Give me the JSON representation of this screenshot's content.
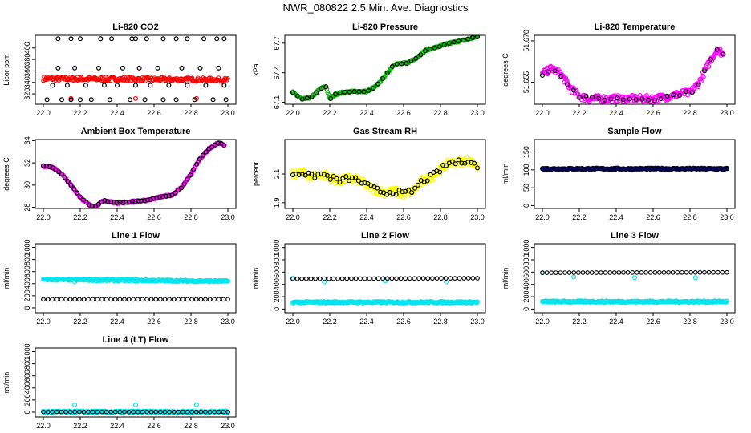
{
  "main_title": "NWR_080822  2.5 Min. Ave. Diagnostics",
  "chart_data": [
    {
      "id": "co2",
      "type": "scatter",
      "title": "Li-820 CO2",
      "ylabel": "Licor ppm",
      "xlim": [
        22.0,
        23.0
      ],
      "ylim": [
        302,
        422
      ],
      "xticks": [
        "22.0",
        "22.2",
        "22.4",
        "22.6",
        "22.8",
        "23.0"
      ],
      "yticks": [
        {
          "v": 320,
          "label": "320"
        },
        {
          "v": 340,
          "label": "340"
        },
        {
          "v": 360,
          "label": "360"
        },
        {
          "v": 380,
          "label": "380"
        },
        {
          "v": 400,
          "label": "400"
        }
      ],
      "series": [
        {
          "name": "band",
          "color": "#ff0000",
          "kind": "band",
          "y0": 343,
          "y1": 350,
          "slope": -2
        },
        {
          "name": "red-outliers",
          "color": "#ff0000",
          "kind": "points",
          "x": [
            22.15,
            22.5,
            22.83
          ],
          "y": [
            312,
            312,
            312
          ]
        },
        {
          "name": "black",
          "color": "#000000",
          "kind": "points",
          "x": [
            22.02,
            22.05,
            22.08,
            22.1,
            22.13,
            22.15,
            22.17,
            22.2,
            22.23,
            22.26,
            22.3,
            22.33,
            22.36,
            22.4,
            22.43,
            22.47,
            22.5,
            22.52,
            22.55,
            22.58,
            22.62,
            22.65,
            22.68,
            22.72,
            22.75,
            22.78,
            22.82,
            22.85,
            22.88,
            22.92,
            22.95,
            22.98,
            22.99
          ],
          "y": [
            310,
            335,
            365,
            310,
            335,
            310,
            365,
            310,
            335,
            310,
            365,
            335,
            310,
            335,
            365,
            310,
            335,
            365,
            310,
            335,
            365,
            310,
            335,
            310,
            365,
            335,
            310,
            365,
            335,
            310,
            365,
            335,
            310
          ]
        },
        {
          "name": "black-top",
          "color": "#000000",
          "kind": "points",
          "x": [
            22.08,
            22.15,
            22.2,
            22.31,
            22.37,
            22.48,
            22.5,
            22.56,
            22.65,
            22.72,
            22.78,
            22.87,
            22.94,
            22.98
          ],
          "y": [
            416,
            416,
            416,
            416,
            416,
            416,
            416,
            416,
            416,
            416,
            416,
            416,
            416,
            416
          ]
        }
      ]
    },
    {
      "id": "pressure",
      "type": "scatter",
      "title": "Li-820 Pressure",
      "ylabel": "kPa",
      "xlim": [
        22.0,
        23.0
      ],
      "ylim": [
        67.08,
        67.78
      ],
      "xticks": [
        "22.0",
        "22.2",
        "22.4",
        "22.6",
        "22.8",
        "23.0"
      ],
      "yticks": [
        {
          "v": 67.1,
          "label": "67.1"
        },
        {
          "v": 67.4,
          "label": "67.4"
        },
        {
          "v": 67.7,
          "label": "67.7"
        }
      ],
      "series": [
        {
          "name": "green",
          "color": "#00c000",
          "kind": "curve",
          "x": [
            22.0,
            22.05,
            22.1,
            22.15,
            22.18,
            22.2,
            22.23,
            22.27,
            22.33,
            22.4,
            22.45,
            22.5,
            22.55,
            22.58,
            22.62,
            22.67,
            22.72,
            22.78,
            22.85,
            22.9,
            22.95,
            23.0
          ],
          "y": [
            67.2,
            67.13,
            67.15,
            67.24,
            67.26,
            67.13,
            67.18,
            67.2,
            67.21,
            67.21,
            67.26,
            67.37,
            67.49,
            67.49,
            67.5,
            67.55,
            67.63,
            67.66,
            67.7,
            67.72,
            67.74,
            67.77
          ]
        },
        {
          "name": "black",
          "color": "#000000",
          "kind": "curvepoints",
          "every": 3
        }
      ]
    },
    {
      "id": "temp",
      "type": "scatter",
      "title": "Li-820 Temperature",
      "ylabel": "degrees C",
      "xlim": [
        22.0,
        23.0
      ],
      "ylim": [
        51.647,
        51.672
      ],
      "xticks": [
        "22.0",
        "22.2",
        "22.4",
        "22.6",
        "22.8",
        "23.0"
      ],
      "yticks": [
        {
          "v": 51.655,
          "label": "51.655"
        },
        {
          "v": 51.67,
          "label": "51.670"
        }
      ],
      "series": [
        {
          "name": "magenta",
          "color": "#ff00ff",
          "kind": "curve",
          "x": [
            22.0,
            22.05,
            22.1,
            22.15,
            22.2,
            22.25,
            22.3,
            22.35,
            22.4,
            22.5,
            22.6,
            22.7,
            22.75,
            22.8,
            22.85,
            22.88,
            22.92,
            22.95,
            22.98
          ],
          "y": [
            51.658,
            51.66,
            51.658,
            51.653,
            51.65,
            51.649,
            51.649,
            51.649,
            51.649,
            51.649,
            51.649,
            51.65,
            51.651,
            51.651,
            51.655,
            51.659,
            51.664,
            51.667,
            51.665
          ]
        },
        {
          "name": "black",
          "color": "#000000",
          "kind": "curvepoints",
          "every": 4
        }
      ]
    },
    {
      "id": "ambient",
      "type": "scatter",
      "title": "Ambient Box Temperature",
      "ylabel": "degrees C",
      "xlim": [
        22.0,
        23.0
      ],
      "ylim": [
        27.9,
        34.1
      ],
      "xticks": [
        "22.0",
        "22.2",
        "22.4",
        "22.6",
        "22.8",
        "23.0"
      ],
      "yticks": [
        {
          "v": 28,
          "label": "28"
        },
        {
          "v": 30,
          "label": "30"
        },
        {
          "v": 32,
          "label": "32"
        },
        {
          "v": 34,
          "label": "34"
        }
      ],
      "series": [
        {
          "name": "magenta",
          "color": "#ff00ff",
          "kind": "curve",
          "x": [
            22.0,
            22.03,
            22.06,
            22.1,
            22.15,
            22.2,
            22.25,
            22.28,
            22.3,
            22.33,
            22.36,
            22.4,
            22.45,
            22.5,
            22.55,
            22.6,
            22.65,
            22.7,
            22.75,
            22.8,
            22.85,
            22.9,
            22.95,
            22.98
          ],
          "y": [
            31.7,
            31.7,
            31.5,
            31.0,
            30.0,
            28.9,
            28.2,
            28.05,
            28.3,
            28.6,
            28.5,
            28.4,
            28.45,
            28.55,
            28.6,
            28.8,
            29.0,
            29.1,
            29.8,
            31.0,
            32.4,
            33.3,
            33.8,
            33.6
          ]
        },
        {
          "name": "black",
          "color": "#000000",
          "kind": "curvepoints",
          "every": 2
        }
      ]
    },
    {
      "id": "rh",
      "type": "scatter",
      "title": "Gas Stream RH",
      "ylabel": "percent",
      "xlim": [
        22.0,
        23.0
      ],
      "ylim": [
        1.86,
        2.34
      ],
      "xticks": [
        "22.0",
        "22.2",
        "22.4",
        "22.6",
        "22.8",
        "23.0"
      ],
      "yticks": [
        {
          "v": 1.9,
          "label": "1.9"
        },
        {
          "v": 2.1,
          "label": "2.1"
        }
      ],
      "series": [
        {
          "name": "yellow",
          "color": "#ffff00",
          "kind": "curve",
          "x": [
            22.0,
            22.05,
            22.1,
            22.15,
            22.2,
            22.25,
            22.3,
            22.35,
            22.4,
            22.45,
            22.5,
            22.55,
            22.6,
            22.65,
            22.7,
            22.75,
            22.8,
            22.85,
            22.9,
            22.95,
            23.0
          ],
          "y": [
            2.1,
            2.11,
            2.08,
            2.1,
            2.08,
            2.05,
            2.07,
            2.06,
            2.02,
            1.99,
            1.97,
            1.98,
            1.96,
            1.98,
            2.05,
            2.08,
            2.13,
            2.18,
            2.18,
            2.2,
            2.15
          ]
        },
        {
          "name": "black",
          "color": "#000000",
          "kind": "curvepoints",
          "every": 2
        }
      ]
    },
    {
      "id": "sample",
      "type": "scatter",
      "title": "Sample Flow",
      "ylabel": "ml/min",
      "xlim": [
        22.0,
        23.0
      ],
      "ylim": [
        -8,
        185
      ],
      "xticks": [
        "22.0",
        "22.2",
        "22.4",
        "22.6",
        "22.8",
        "23.0"
      ],
      "yticks": [
        {
          "v": 0,
          "label": "0"
        },
        {
          "v": 50,
          "label": "50"
        },
        {
          "v": 100,
          "label": "100"
        },
        {
          "v": 150,
          "label": "150"
        }
      ],
      "series": [
        {
          "name": "navy",
          "color": "#000080",
          "kind": "flat",
          "y": 103
        },
        {
          "name": "black",
          "color": "#000000",
          "kind": "flatpoints",
          "y": 103
        }
      ]
    },
    {
      "id": "line1",
      "type": "scatter",
      "title": "Line 1 Flow",
      "ylabel": "ml/min",
      "xlim": [
        22.0,
        23.0
      ],
      "ylim": [
        -80,
        1060
      ],
      "xticks": [
        "22.0",
        "22.2",
        "22.4",
        "22.6",
        "22.8",
        "23.0"
      ],
      "yticks": [
        {
          "v": 0,
          "label": "0"
        },
        {
          "v": 200,
          "label": "200"
        },
        {
          "v": 400,
          "label": "400"
        },
        {
          "v": 600,
          "label": "600"
        },
        {
          "v": 800,
          "label": "800"
        },
        {
          "v": 1000,
          "label": "1000"
        }
      ],
      "series": [
        {
          "name": "cyan",
          "color": "#00e5ee",
          "kind": "flat",
          "y": 470,
          "y_end": 440,
          "outliers": {
            "x": [
              22.17,
              22.5,
              22.83
            ],
            "y": [
              430,
              440,
              430
            ]
          }
        },
        {
          "name": "black",
          "color": "#000000",
          "kind": "flatpoints",
          "y": 140
        }
      ]
    },
    {
      "id": "line2",
      "type": "scatter",
      "title": "Line 2 Flow",
      "ylabel": "ml/min",
      "xlim": [
        22.0,
        23.0
      ],
      "ylim": [
        -60,
        1060
      ],
      "xticks": [
        "22.0",
        "22.2",
        "22.4",
        "22.6",
        "22.8",
        "23.0"
      ],
      "yticks": [
        {
          "v": 0,
          "label": "0"
        },
        {
          "v": 200,
          "label": "200"
        },
        {
          "v": 400,
          "label": "400"
        },
        {
          "v": 600,
          "label": "600"
        },
        {
          "v": 800,
          "label": "800"
        },
        {
          "v": 1000,
          "label": "1000"
        }
      ],
      "series": [
        {
          "name": "cyan",
          "color": "#00e5ee",
          "kind": "flat",
          "y": 110,
          "outliers": {
            "x": [
              22.0,
              22.17,
              22.5,
              22.83
            ],
            "y": [
              500,
              440,
              460,
              440
            ]
          }
        },
        {
          "name": "black",
          "color": "#000000",
          "kind": "flatpoints",
          "y": 490,
          "y_end": 500
        }
      ]
    },
    {
      "id": "line3",
      "type": "scatter",
      "title": "Line 3 Flow",
      "ylabel": "ml/min",
      "xlim": [
        22.0,
        23.0
      ],
      "ylim": [
        -60,
        1060
      ],
      "xticks": [
        "22.0",
        "22.2",
        "22.4",
        "22.6",
        "22.8",
        "23.0"
      ],
      "yticks": [
        {
          "v": 0,
          "label": "0"
        },
        {
          "v": 200,
          "label": "200"
        },
        {
          "v": 400,
          "label": "400"
        },
        {
          "v": 600,
          "label": "600"
        },
        {
          "v": 800,
          "label": "800"
        },
        {
          "v": 1000,
          "label": "1000"
        }
      ],
      "series": [
        {
          "name": "cyan",
          "color": "#00e5ee",
          "kind": "flat",
          "y": 120,
          "outliers": {
            "x": [
              22.0,
              22.17,
              22.5,
              22.83
            ],
            "y": [
              590,
              520,
              510,
              510
            ]
          }
        },
        {
          "name": "black",
          "color": "#000000",
          "kind": "flatpoints",
          "y": 590,
          "y_end": 595
        }
      ]
    },
    {
      "id": "line4",
      "type": "scatter",
      "title": "Line 4 (LT) Flow",
      "ylabel": "ml/min",
      "xlim": [
        22.0,
        23.0
      ],
      "ylim": [
        -80,
        1060
      ],
      "xticks": [
        "22.0",
        "22.2",
        "22.4",
        "22.6",
        "22.8",
        "23.0"
      ],
      "yticks": [
        {
          "v": 0,
          "label": "0"
        },
        {
          "v": 200,
          "label": "200"
        },
        {
          "v": 400,
          "label": "400"
        },
        {
          "v": 600,
          "label": "600"
        },
        {
          "v": 800,
          "label": "800"
        },
        {
          "v": 1000,
          "label": "1000"
        }
      ],
      "series": [
        {
          "name": "cyan",
          "color": "#00e5ee",
          "kind": "flat",
          "y": 5,
          "outliers": {
            "x": [
              22.17,
              22.5,
              22.83
            ],
            "y": [
              120,
              120,
              120
            ]
          }
        },
        {
          "name": "black",
          "color": "#000000",
          "kind": "flatpoints",
          "y": 5
        }
      ]
    }
  ]
}
